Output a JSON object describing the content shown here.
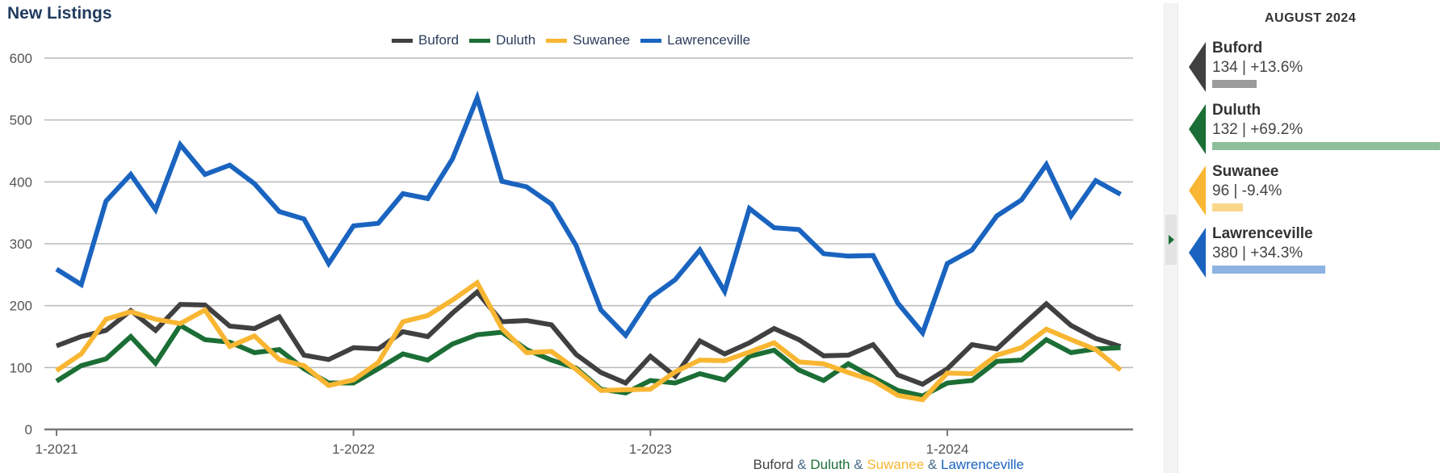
{
  "title": "New Listings",
  "chart_data": {
    "type": "line",
    "title": "New Listings",
    "ylim": [
      0,
      600
    ],
    "y_ticks": [
      0,
      100,
      200,
      300,
      400,
      500,
      600
    ],
    "x_tick_labels": [
      "1-2021",
      "1-2022",
      "1-2023",
      "1-2024"
    ],
    "x_start": "2021-01",
    "x_end": "2024-08",
    "grid": true,
    "legend_position": "top-center",
    "series": [
      {
        "name": "Buford",
        "color": "#404040",
        "values": [
          135,
          150,
          160,
          192,
          160,
          202,
          201,
          167,
          163,
          182,
          120,
          113,
          132,
          130,
          158,
          150,
          188,
          222,
          174,
          176,
          169,
          121,
          92,
          75,
          118,
          86,
          143,
          122,
          140,
          163,
          145,
          119,
          120,
          137,
          88,
          73,
          98,
          137,
          130,
          167,
          203,
          168,
          147,
          134
        ]
      },
      {
        "name": "Duluth",
        "color": "#1b6e35",
        "values": [
          78,
          103,
          114,
          150,
          107,
          168,
          145,
          141,
          124,
          129,
          98,
          75,
          75,
          98,
          122,
          112,
          138,
          153,
          157,
          129,
          112,
          99,
          65,
          59,
          79,
          75,
          90,
          80,
          118,
          128,
          96,
          79,
          106,
          84,
          63,
          54,
          75,
          79,
          110,
          112,
          145,
          124,
          130,
          132
        ]
      },
      {
        "name": "Suwanee",
        "color": "#f8b632",
        "values": [
          95,
          122,
          178,
          190,
          178,
          171,
          193,
          134,
          151,
          113,
          103,
          71,
          80,
          108,
          174,
          184,
          209,
          237,
          163,
          124,
          126,
          97,
          63,
          64,
          65,
          93,
          112,
          111,
          125,
          140,
          109,
          106,
          92,
          79,
          55,
          48,
          91,
          90,
          120,
          132,
          162,
          145,
          129,
          96
        ]
      },
      {
        "name": "Lawrenceville",
        "color": "#1a64c0",
        "values": [
          259,
          234,
          369,
          412,
          355,
          460,
          412,
          427,
          397,
          352,
          340,
          268,
          329,
          333,
          381,
          373,
          437,
          536,
          401,
          392,
          364,
          297,
          193,
          152,
          213,
          242,
          290,
          223,
          357,
          326,
          323,
          284,
          280,
          281,
          204,
          156,
          268,
          290,
          345,
          371,
          428,
          345,
          402,
          380
        ]
      }
    ]
  },
  "legend": [
    "Buford",
    "Duluth",
    "Suwanee",
    "Lawrenceville"
  ],
  "footer": {
    "names": [
      "Buford",
      "Duluth",
      "Suwanee",
      "Lawrenceville"
    ],
    "separator": " & "
  },
  "side_panel": {
    "period": "AUGUST 2024",
    "cards": [
      {
        "name": "Buford",
        "value": "134 | +13.6%",
        "pct": 13.6,
        "arrow_color": "#404040",
        "bar_color": "#9b9b9b"
      },
      {
        "name": "Duluth",
        "value": "132 | +69.2%",
        "pct": 69.2,
        "arrow_color": "#1b6e35",
        "bar_color": "#8dbf9a"
      },
      {
        "name": "Suwanee",
        "value": "96 | -9.4%",
        "pct": -9.4,
        "arrow_color": "#f8b632",
        "bar_color": "#fbd78c"
      },
      {
        "name": "Lawrenceville",
        "value": "380 | +34.3%",
        "pct": 34.3,
        "arrow_color": "#1a64c0",
        "bar_color": "#8cb3e2"
      }
    ]
  }
}
